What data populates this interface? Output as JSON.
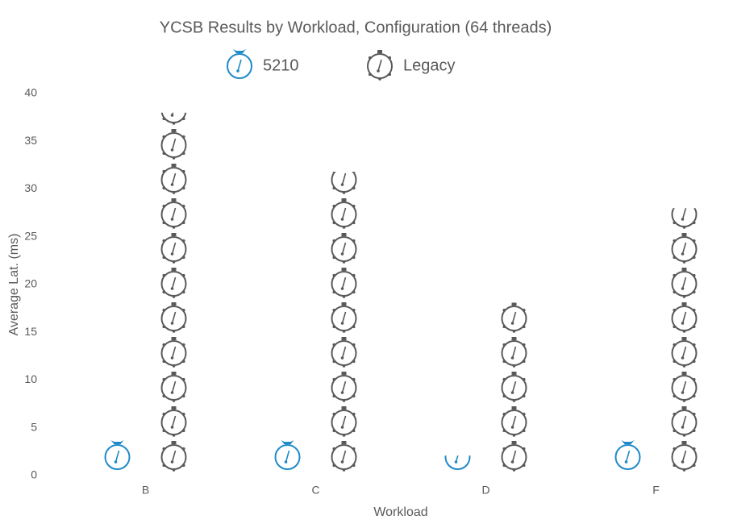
{
  "chart_data": {
    "type": "pictograph_bar",
    "title": "YCSB Results by Workload, Configuration (64 threads)",
    "x_label": "Workload",
    "y_label": "Average Lat. (ms)",
    "categories": [
      "B",
      "C",
      "D",
      "F"
    ],
    "series": [
      {
        "name": "5210",
        "color": "#1f8ac8",
        "values": [
          3.9,
          3.9,
          2.1,
          4.1
        ]
      },
      {
        "name": "Legacy",
        "color": "#595959",
        "values": [
          38,
          31.8,
          18.1,
          28
        ]
      }
    ],
    "ylim": [
      0,
      40
    ],
    "yticks": [
      0,
      5,
      10,
      15,
      20,
      25,
      30,
      35,
      40
    ],
    "grid": false,
    "legend": "top"
  }
}
